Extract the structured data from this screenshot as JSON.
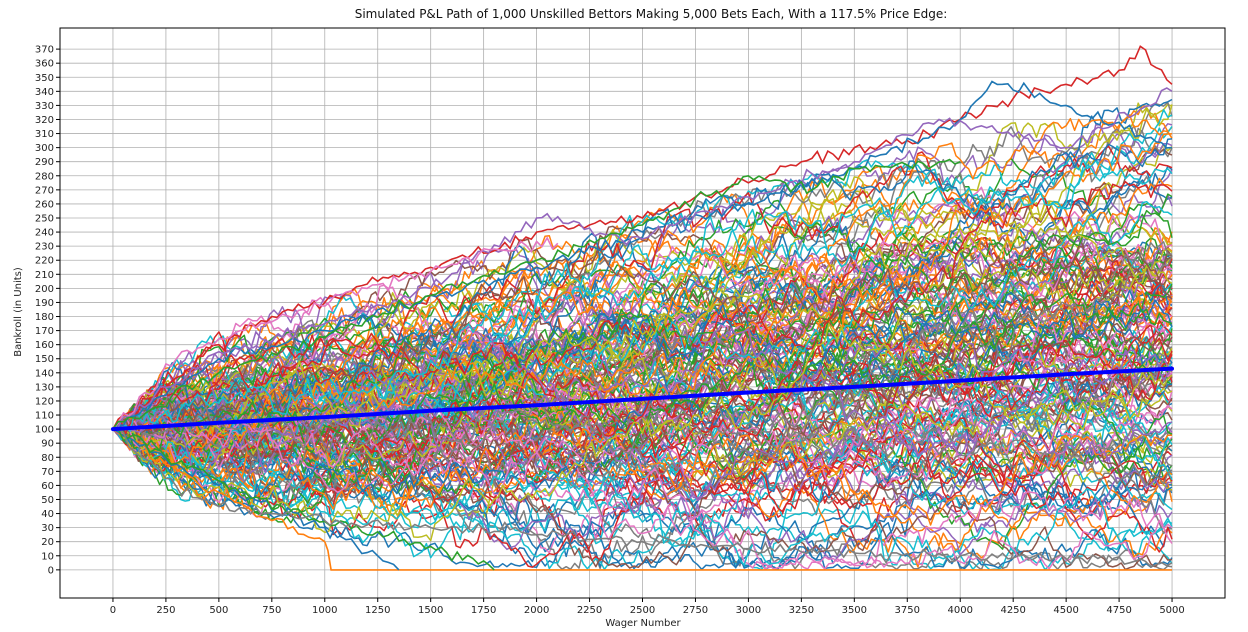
{
  "chart_data": {
    "type": "line",
    "title": "Simulated P&L Path of 1,000 Unskilled Bettors Making 5,000 Bets Each, With a 117.5% Price Edge:",
    "xlabel": "Wager Number",
    "ylabel": "Bankroll (in Units)",
    "xlim": [
      -250,
      5250
    ],
    "ylim": [
      -20,
      385
    ],
    "xticks": [
      0,
      250,
      500,
      750,
      1000,
      1250,
      1500,
      1750,
      2000,
      2250,
      2500,
      2750,
      3000,
      3250,
      3500,
      3750,
      4000,
      4250,
      4500,
      4750,
      5000
    ],
    "yticks": [
      0,
      10,
      20,
      30,
      40,
      50,
      60,
      70,
      80,
      90,
      100,
      110,
      120,
      130,
      140,
      150,
      160,
      170,
      180,
      190,
      200,
      210,
      220,
      230,
      240,
      250,
      260,
      270,
      280,
      290,
      300,
      310,
      320,
      330,
      340,
      350,
      360,
      370
    ],
    "grid": true,
    "legend": "none",
    "simulation": {
      "bettors": 1000,
      "bets_each": 5000,
      "starting_bankroll": 100
    },
    "mean_series": {
      "x": [
        0,
        500,
        1000,
        1500,
        2000,
        2500,
        3000,
        3500,
        4000,
        4500,
        5000
      ],
      "y": [
        100,
        104.5,
        108.5,
        113,
        117,
        121.5,
        126,
        130,
        134.5,
        139,
        143
      ],
      "color": "#0000ff"
    },
    "highlight_paths": [
      {
        "x": [
          0,
          250,
          500,
          750,
          1000,
          1250,
          1500,
          1750,
          2000,
          2250,
          2500,
          2750,
          3000,
          3250,
          3500,
          3750,
          4000,
          4250,
          4500,
          4750,
          4850,
          5000
        ],
        "y": [
          100,
          130,
          160,
          180,
          190,
          205,
          215,
          225,
          240,
          245,
          250,
          265,
          275,
          290,
          300,
          305,
          320,
          335,
          345,
          355,
          372,
          345
        ],
        "color": "#d62728"
      },
      {
        "x": [
          0,
          500,
          1000,
          1500,
          2000,
          2500,
          3000,
          3500,
          4000,
          4150,
          4500,
          5000
        ],
        "y": [
          100,
          150,
          170,
          195,
          215,
          240,
          260,
          285,
          320,
          347,
          330,
          300
        ],
        "color": "#1f77b4"
      },
      {
        "x": [
          0,
          500,
          1000,
          1500,
          2000,
          2500,
          3000,
          3500,
          3900,
          4500,
          5000
        ],
        "y": [
          100,
          155,
          175,
          200,
          250,
          235,
          265,
          290,
          320,
          300,
          340
        ],
        "color": "#9467bd"
      },
      {
        "x": [
          0,
          250,
          500,
          750,
          1000
        ],
        "y": [
          100,
          75,
          55,
          35,
          20
        ],
        "color": "#ff7f0e"
      },
      {
        "x": [
          1000,
          1030,
          5000
        ],
        "y": [
          20,
          0,
          0
        ],
        "color": "#ff7f0e"
      },
      {
        "x": [
          0,
          500,
          1000,
          1250,
          1350
        ],
        "y": [
          100,
          60,
          30,
          10,
          0
        ],
        "color": "#1f77b4"
      },
      {
        "x": [
          0,
          600,
          1200,
          1700,
          1800
        ],
        "y": [
          100,
          55,
          25,
          8,
          0
        ],
        "color": "#2ca02c"
      },
      {
        "x": [
          0,
          250,
          500,
          750,
          1000,
          1500,
          2000,
          2500,
          3000,
          3500,
          4000,
          4500,
          5000
        ],
        "y": [
          100,
          65,
          45,
          40,
          35,
          30,
          25,
          20,
          15,
          12,
          10,
          8,
          5
        ],
        "color": "#7f7f7f"
      },
      {
        "x": [
          0,
          300,
          600,
          900,
          1200,
          1500,
          1800,
          2100
        ],
        "y": [
          100,
          150,
          170,
          185,
          200,
          212,
          228,
          232
        ],
        "color": "#e377c2"
      },
      {
        "x": [
          0,
          500,
          1000,
          1500,
          2000,
          2500,
          2900,
          3000,
          3300,
          3500,
          4000
        ],
        "y": [
          100,
          140,
          165,
          195,
          220,
          245,
          270,
          280,
          270,
          285,
          290
        ],
        "color": "#2ca02c"
      }
    ],
    "band": {
      "x": [
        0,
        250,
        500,
        750,
        1000,
        1250,
        1500,
        1750,
        2000,
        2250,
        2500,
        2750,
        3000,
        3250,
        3500,
        3750,
        4000,
        4250,
        4500,
        4750,
        5000
      ],
      "lower": [
        100,
        52,
        42,
        35,
        25,
        12,
        5,
        2,
        0,
        0,
        0,
        0,
        0,
        0,
        0,
        0,
        0,
        0,
        0,
        0,
        0
      ],
      "upper": [
        100,
        145,
        172,
        185,
        195,
        205,
        215,
        225,
        240,
        248,
        255,
        262,
        270,
        280,
        290,
        298,
        310,
        318,
        322,
        330,
        335
      ]
    },
    "path_colors": [
      "#1f77b4",
      "#ff7f0e",
      "#2ca02c",
      "#d62728",
      "#9467bd",
      "#8c564b",
      "#e377c2",
      "#7f7f7f",
      "#bcbd22",
      "#17becf"
    ]
  }
}
